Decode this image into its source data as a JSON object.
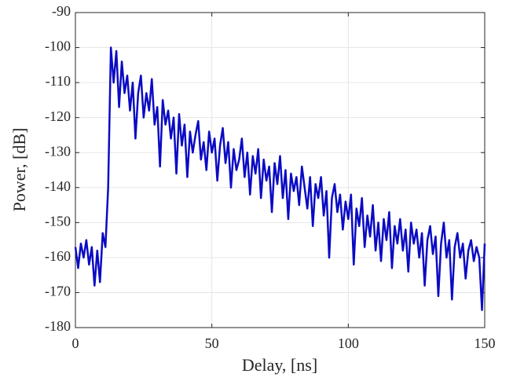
{
  "chart_data": {
    "type": "line",
    "xlabel": "Delay, [ns]",
    "ylabel": "Power, [dB]",
    "color": "#0b0bc4",
    "grid": true,
    "xlim": [
      0,
      150
    ],
    "xticks": [
      0,
      50,
      100,
      150
    ],
    "ylim": [
      -180,
      -90
    ],
    "yticks": [
      -180,
      -170,
      -160,
      -150,
      -140,
      -130,
      -120,
      -110,
      -100,
      -90
    ],
    "x": [
      0,
      1,
      2,
      3,
      4,
      5,
      6,
      7,
      8,
      9,
      10,
      11,
      12,
      13,
      14,
      15,
      16,
      17,
      18,
      19,
      20,
      21,
      22,
      23,
      24,
      25,
      26,
      27,
      28,
      29,
      30,
      31,
      32,
      33,
      34,
      35,
      36,
      37,
      38,
      39,
      40,
      41,
      42,
      43,
      44,
      45,
      46,
      47,
      48,
      49,
      50,
      51,
      52,
      53,
      54,
      55,
      56,
      57,
      58,
      59,
      60,
      61,
      62,
      63,
      64,
      65,
      66,
      67,
      68,
      69,
      70,
      71,
      72,
      73,
      74,
      75,
      76,
      77,
      78,
      79,
      80,
      81,
      82,
      83,
      84,
      85,
      86,
      87,
      88,
      89,
      90,
      91,
      92,
      93,
      94,
      95,
      96,
      97,
      98,
      99,
      100,
      101,
      102,
      103,
      104,
      105,
      106,
      107,
      108,
      109,
      110,
      111,
      112,
      113,
      114,
      115,
      116,
      117,
      118,
      119,
      120,
      121,
      122,
      123,
      124,
      125,
      126,
      127,
      128,
      129,
      130,
      131,
      132,
      133,
      134,
      135,
      136,
      137,
      138,
      139,
      140,
      141,
      142,
      143,
      144,
      145,
      146,
      147,
      148,
      149,
      150
    ],
    "values": [
      -157,
      -163,
      -156,
      -160,
      -155,
      -162,
      -157,
      -168,
      -158,
      -167,
      -153,
      -157,
      -140,
      -100,
      -110,
      -101,
      -117,
      -104,
      -113,
      -108,
      -118,
      -110,
      -126,
      -113,
      -108,
      -120,
      -113,
      -118,
      -109,
      -122,
      -117,
      -134,
      -115,
      -122,
      -118,
      -126,
      -120,
      -136,
      -119,
      -128,
      -122,
      -137,
      -124,
      -130,
      -125,
      -121,
      -132,
      -127,
      -135,
      -124,
      -130,
      -126,
      -138,
      -128,
      -123,
      -133,
      -127,
      -140,
      -129,
      -135,
      -132,
      -126,
      -137,
      -130,
      -142,
      -131,
      -136,
      -129,
      -143,
      -132,
      -138,
      -134,
      -147,
      -133,
      -139,
      -131,
      -143,
      -135,
      -149,
      -136,
      -141,
      -137,
      -145,
      -134,
      -140,
      -146,
      -137,
      -151,
      -139,
      -143,
      -137,
      -148,
      -141,
      -160,
      -143,
      -139,
      -147,
      -142,
      -152,
      -144,
      -149,
      -142,
      -162,
      -146,
      -151,
      -143,
      -157,
      -148,
      -154,
      -145,
      -158,
      -150,
      -161,
      -149,
      -155,
      -147,
      -163,
      -151,
      -156,
      -149,
      -158,
      -152,
      -164,
      -150,
      -156,
      -152,
      -160,
      -153,
      -168,
      -155,
      -151,
      -159,
      -154,
      -171,
      -156,
      -150,
      -160,
      -155,
      -172,
      -157,
      -153,
      -160,
      -156,
      -166,
      -158,
      -155,
      -161,
      -157,
      -160,
      -175,
      -156
    ]
  }
}
